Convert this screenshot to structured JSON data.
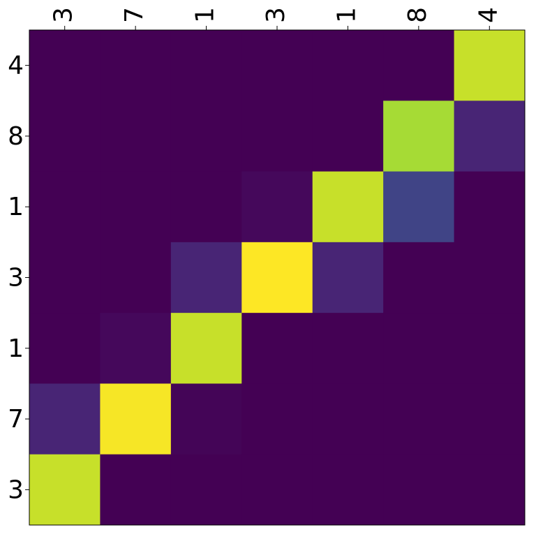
{
  "chart_data": {
    "type": "heatmap",
    "colormap": "viridis",
    "x_categories": [
      "3",
      "7",
      "1",
      "3",
      "1",
      "8",
      "4"
    ],
    "y_categories": [
      "4",
      "8",
      "1",
      "3",
      "1",
      "7",
      "3"
    ],
    "values": [
      [
        0,
        0,
        0,
        0,
        0,
        0,
        0.9
      ],
      [
        0,
        0,
        0,
        0,
        0,
        0.85,
        0.1
      ],
      [
        0,
        0,
        0,
        0.02,
        0.9,
        0.2,
        0
      ],
      [
        0,
        0,
        0.1,
        0.98,
        0.1,
        0,
        0
      ],
      [
        0,
        0.02,
        0.9,
        0,
        0,
        0,
        0
      ],
      [
        0.1,
        0.97,
        0.01,
        0,
        0,
        0,
        0
      ],
      [
        0.9,
        0,
        0,
        0,
        0,
        0,
        0
      ]
    ]
  }
}
